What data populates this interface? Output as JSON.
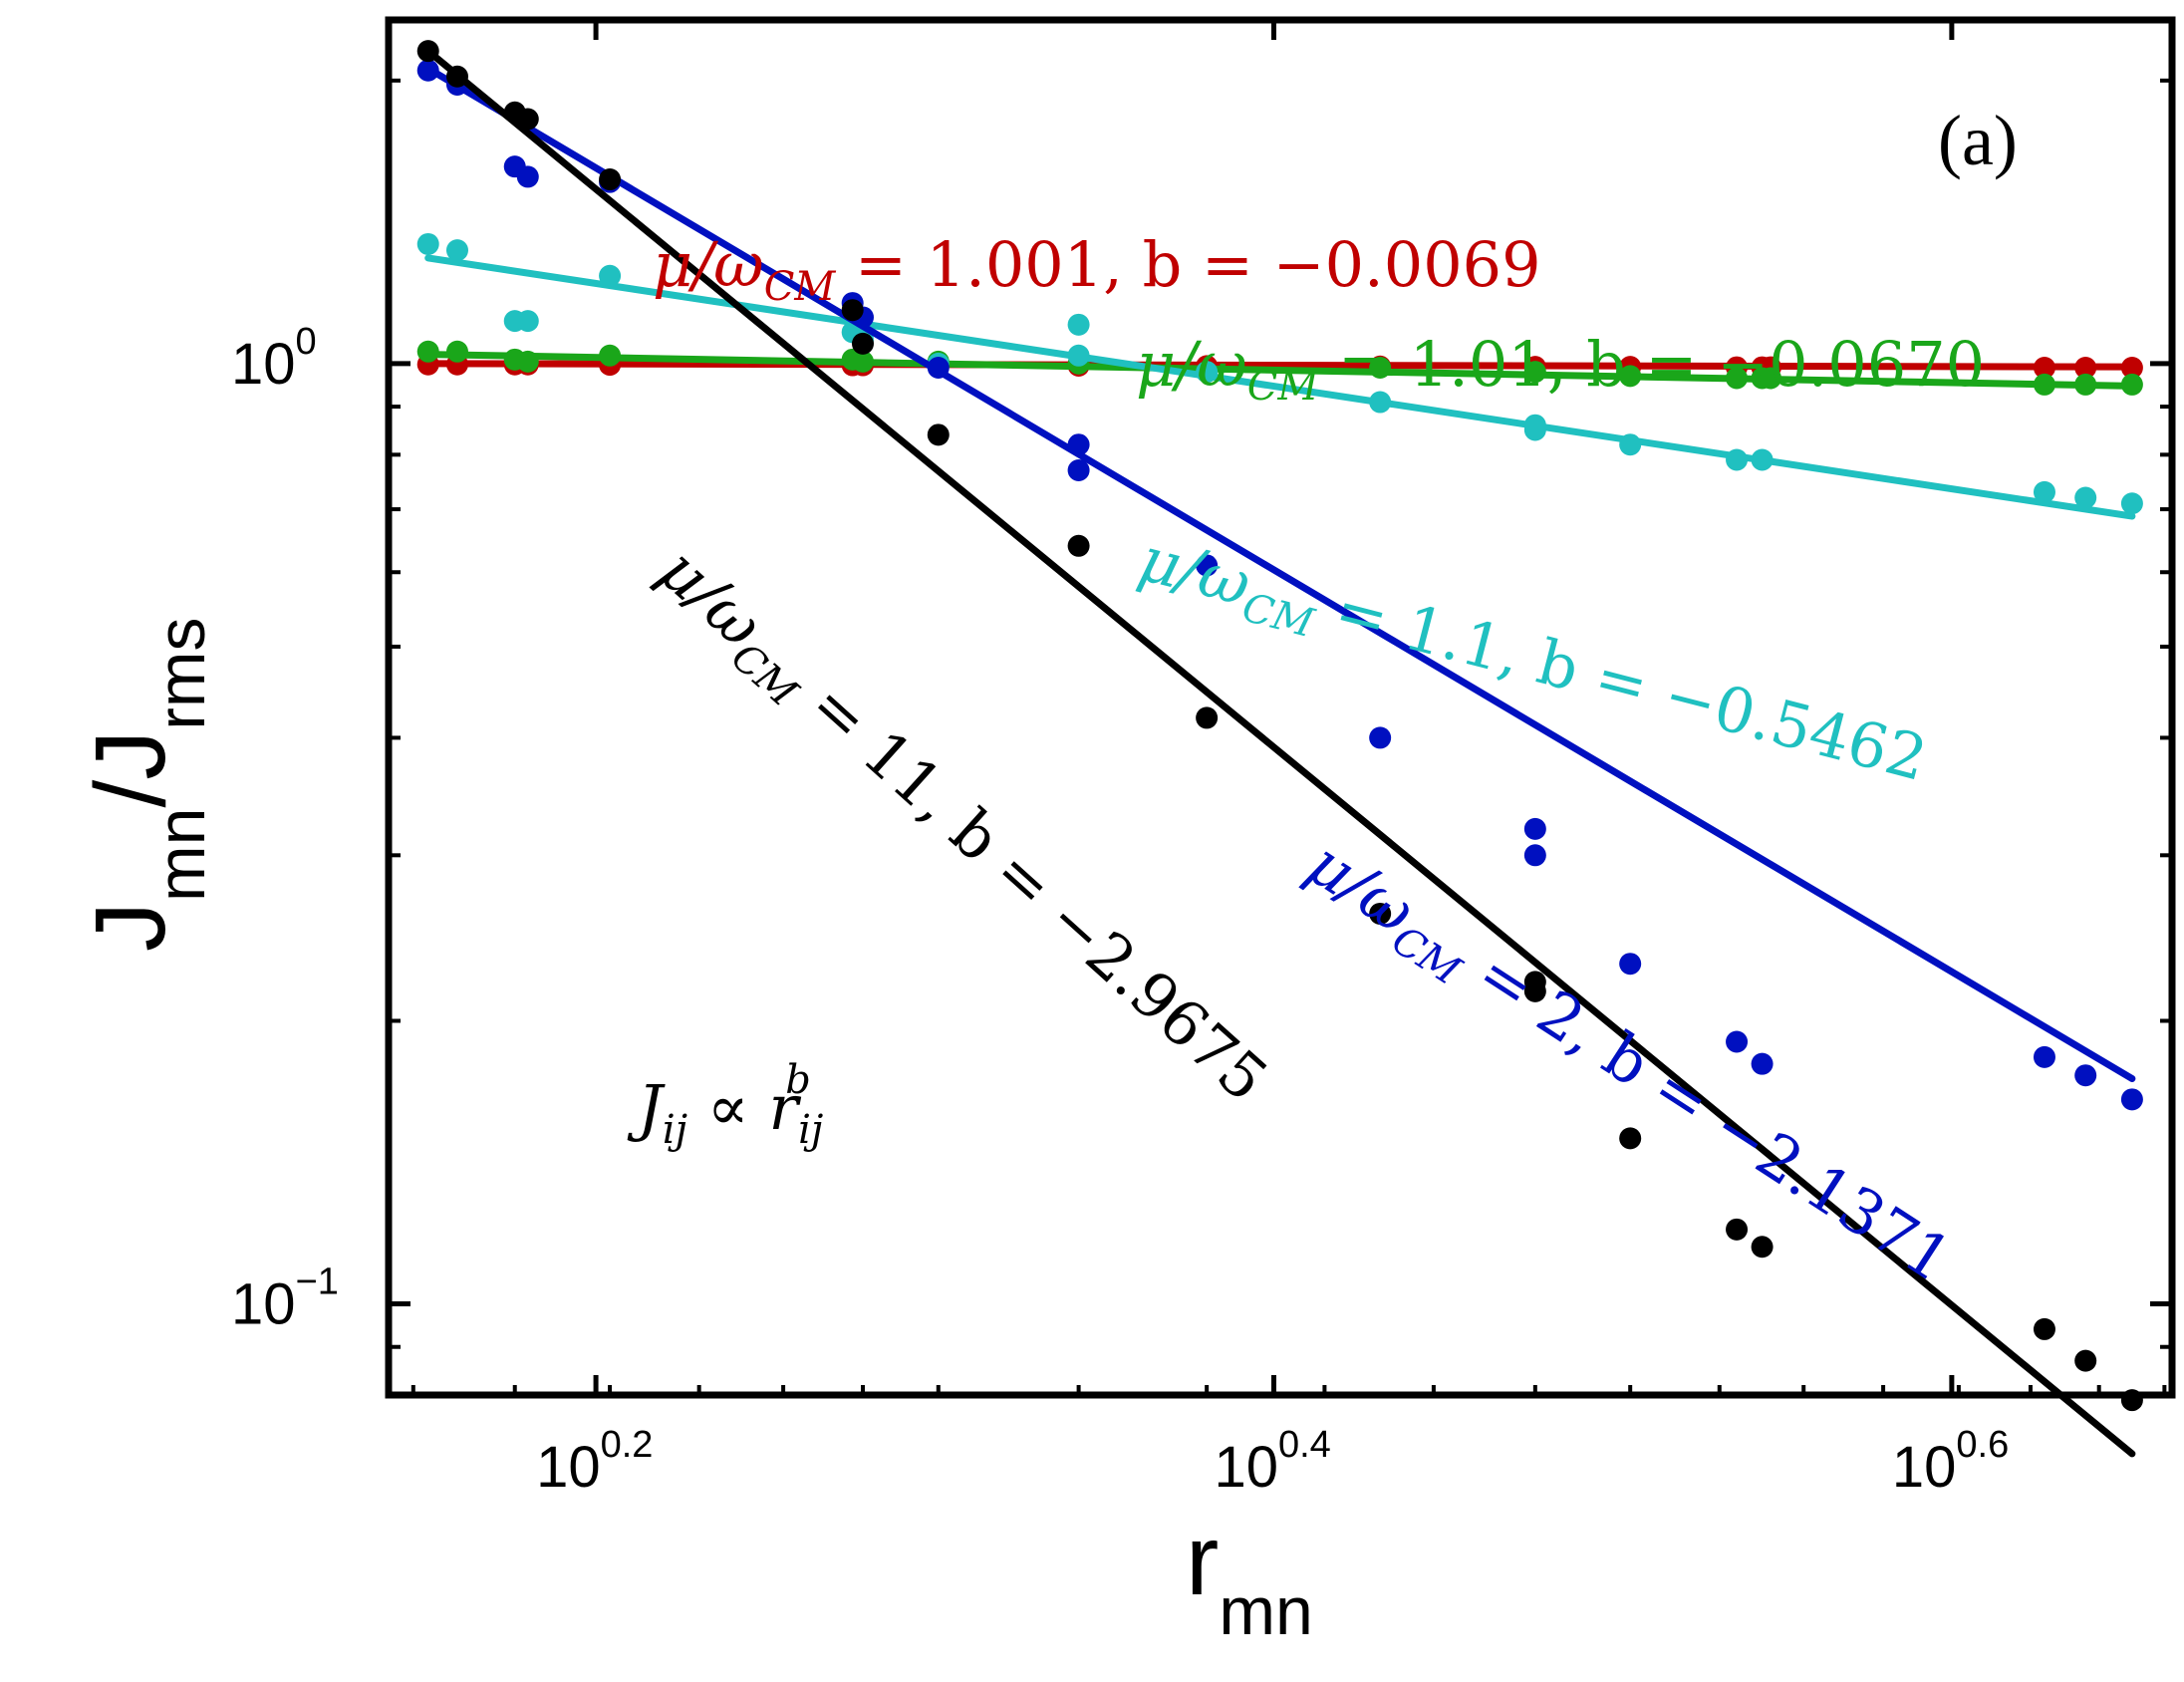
{
  "chart_data": {
    "type": "scatter",
    "scale": {
      "x": "log10",
      "y": "log10"
    },
    "xlim": [
      1.3767,
      4.6238
    ],
    "ylim": [
      0.08,
      2.32
    ],
    "panel_label": "(a)",
    "xlabel": {
      "main": "r",
      "sub": "mn"
    },
    "ylabel": {
      "main": "J",
      "sub": "mn",
      "main2": "/J",
      "sub2": "rms"
    },
    "x_ticks": [
      {
        "value": 1.5849,
        "base": "10",
        "exp": "0.2"
      },
      {
        "value": 2.5119,
        "base": "10",
        "exp": "0.4"
      },
      {
        "value": 3.9811,
        "base": "10",
        "exp": "0.6"
      }
    ],
    "y_ticks": [
      {
        "value": 0.1,
        "base": "10",
        "exp": "−1"
      },
      {
        "value": 1.0,
        "base": "10",
        "exp": "0"
      }
    ],
    "formula": {
      "lhs": "J",
      "lhs_sub": "ij",
      "op": " ∝ ",
      "rhs": "r",
      "rhs_sub": "ij",
      "rhs_sup": "b"
    },
    "series": [
      {
        "name": "mu/omega_CM = 1.001",
        "color": "#c00000",
        "label": {
          "mu": "μ/ω",
          "sub": "CM",
          "text": " = 1.001, b = −0.0069"
        },
        "fit": {
          "b": -0.0069,
          "x0": 1.4142,
          "y0": 1.0,
          "x_range": [
            1.4142,
            4.5
          ]
        },
        "x": [
          1.4142,
          1.4425,
          1.5,
          1.5133,
          1.6,
          1.8868,
          1.9,
          2.0,
          2.2,
          2.4,
          2.7,
          3.0,
          3.2,
          3.44,
          3.5,
          3.52,
          4.24,
          4.36,
          4.5
        ],
        "y": [
          0.998,
          0.998,
          0.998,
          0.998,
          0.997,
          0.996,
          0.996,
          0.995,
          0.995,
          0.994,
          0.993,
          0.992,
          0.992,
          0.991,
          0.991,
          0.991,
          0.99,
          0.99,
          0.99
        ]
      },
      {
        "name": "mu/omega_CM = 1.01",
        "color": "#1aa61a",
        "label": {
          "mu": "μ/ω",
          "sub": "CM",
          "text": " = 1.01, b = −0.0670"
        },
        "fit": {
          "b": -0.067,
          "x0": 1.4142,
          "y0": 1.023,
          "x_range": [
            1.4142,
            4.5
          ]
        },
        "x": [
          1.4142,
          1.4425,
          1.5,
          1.5133,
          1.6,
          1.8868,
          1.9,
          2.0,
          2.2,
          2.4,
          2.7,
          3.0,
          3.2,
          3.44,
          3.5,
          3.52,
          4.24,
          4.36,
          4.5
        ],
        "y": [
          1.03,
          1.03,
          1.01,
          1.005,
          1.02,
          1.01,
          1.005,
          1.005,
          1.0,
          0.98,
          0.99,
          0.98,
          0.97,
          0.965,
          0.965,
          0.965,
          0.95,
          0.95,
          0.95
        ]
      },
      {
        "name": "mu/omega_CM = 1.1",
        "color": "#20c0c0",
        "label": {
          "mu": "μ/ω",
          "sub": "CM",
          "text": " = 1.1, b = −0.5462"
        },
        "fit": {
          "b": -0.5462,
          "x0": 1.4142,
          "y0": 1.295,
          "x_range": [
            1.4142,
            4.5
          ]
        },
        "x": [
          1.4142,
          1.4425,
          1.5,
          1.5133,
          1.6,
          1.8868,
          1.9,
          2.0,
          2.2,
          2.2,
          2.4,
          2.7,
          3.0,
          3.0,
          3.2,
          3.44,
          3.5,
          4.24,
          4.36,
          4.5
        ],
        "y": [
          1.34,
          1.32,
          1.11,
          1.11,
          1.24,
          1.08,
          1.06,
          1.0,
          1.1,
          1.02,
          0.98,
          0.91,
          0.86,
          0.85,
          0.82,
          0.79,
          0.79,
          0.73,
          0.72,
          0.71
        ]
      },
      {
        "name": "mu/omega_CM = 2",
        "color": "#0010c0",
        "label": {
          "mu": "μ/ω",
          "sub": "CM",
          "text": " = 2, b = −2.1371"
        },
        "fit": {
          "b": -2.1371,
          "x0": 1.4142,
          "y0": 2.06,
          "x_range": [
            1.4142,
            4.5
          ]
        },
        "x": [
          1.4142,
          1.4425,
          1.5,
          1.5133,
          1.6,
          1.8868,
          1.9,
          2.0,
          2.2,
          2.2,
          2.4,
          2.7,
          3.0,
          3.0,
          3.2,
          3.44,
          3.5,
          4.24,
          4.36,
          4.5
        ],
        "y": [
          2.05,
          1.98,
          1.62,
          1.58,
          1.56,
          1.16,
          1.12,
          0.99,
          0.82,
          0.77,
          0.61,
          0.4,
          0.32,
          0.3,
          0.23,
          0.19,
          0.18,
          0.183,
          0.175,
          0.165
        ]
      },
      {
        "name": "mu/omega_CM = 11",
        "color": "#000000",
        "label": {
          "mu": "μ/ω",
          "sub": "CM",
          "text": " = 11, b = −2.9675"
        },
        "fit": {
          "b": -2.9675,
          "x0": 1.4142,
          "y0": 2.15,
          "x_range": [
            1.4142,
            4.5
          ]
        },
        "x": [
          1.4142,
          1.4425,
          1.5,
          1.5133,
          1.6,
          1.8868,
          1.9,
          2.0,
          2.2,
          2.4,
          2.7,
          3.0,
          3.0,
          3.2,
          3.44,
          3.5,
          4.24,
          4.36,
          4.5
        ],
        "y": [
          2.15,
          2.02,
          1.85,
          1.82,
          1.57,
          1.14,
          1.05,
          0.84,
          0.64,
          0.42,
          0.26,
          0.22,
          0.215,
          0.15,
          0.12,
          0.115,
          0.094,
          0.087,
          0.079
        ]
      }
    ]
  }
}
